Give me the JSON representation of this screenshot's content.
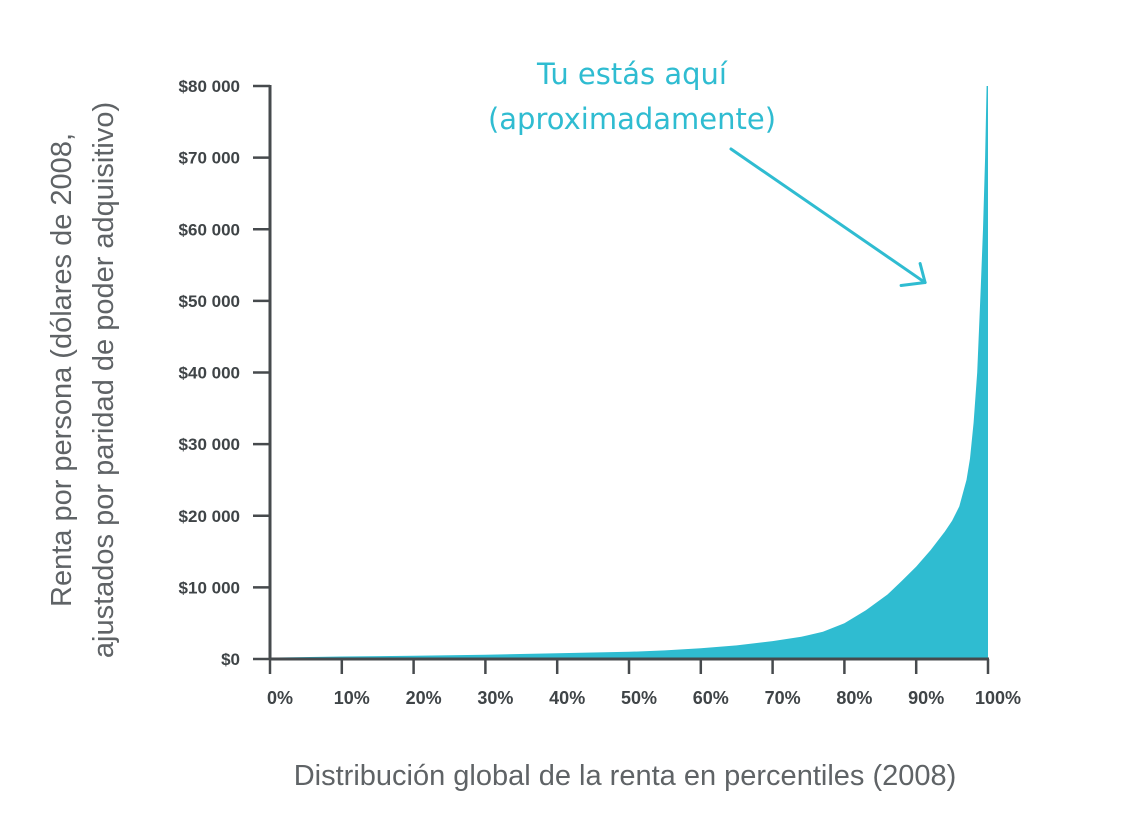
{
  "chart_data": {
    "type": "area",
    "title": "",
    "xlabel": "Distribución global de la renta en percentiles (2008)",
    "ylabel_lines": [
      "Renta por persona (dólares de 2008,",
      "ajustados por paridad de poder adquisitivo)"
    ],
    "xlim": [
      0,
      100
    ],
    "ylim": [
      0,
      80000
    ],
    "x_ticks": [
      "0%",
      "10%",
      "20%",
      "30%",
      "40%",
      "50%",
      "60%",
      "70%",
      "80%",
      "90%",
      "100%"
    ],
    "y_ticks": [
      "$0",
      "$10 000",
      "$20 000",
      "$30 000",
      "$40 000",
      "$50 000",
      "$60 000",
      "$70 000",
      "$80 000"
    ],
    "grid": false,
    "series": [
      {
        "fill_color": "#2fbcd1",
        "x": [
          0,
          10,
          20,
          30,
          40,
          50,
          55,
          60,
          65,
          70,
          74,
          77,
          80,
          83,
          86,
          88,
          90,
          92,
          94,
          95,
          96,
          97,
          97.5,
          98,
          98.5,
          99,
          99.3,
          99.6,
          99.8,
          100
        ],
        "y": [
          200,
          350,
          450,
          600,
          800,
          1000,
          1200,
          1500,
          1900,
          2500,
          3100,
          3800,
          5000,
          6800,
          9000,
          10900,
          12900,
          15200,
          17800,
          19300,
          21300,
          25000,
          28000,
          33000,
          40000,
          52000,
          60000,
          70000,
          80000,
          80000
        ]
      }
    ],
    "annotations": [
      {
        "lines": [
          "Tu estás aquí",
          "(aproximadamente)"
        ],
        "color": "#2fbcd1",
        "target_x": 95,
        "target_y": 52000
      }
    ]
  }
}
